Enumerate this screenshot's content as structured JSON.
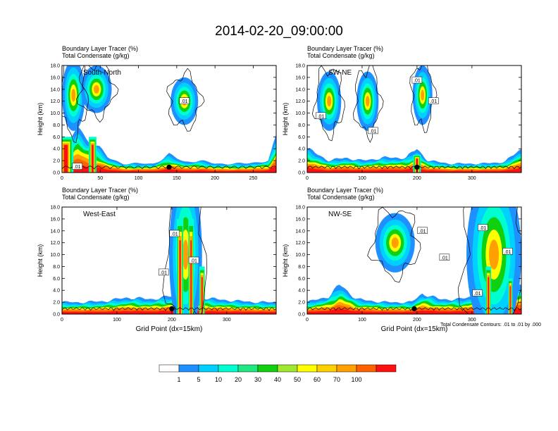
{
  "title": "2014-02-20_09:00:00",
  "colors": [
    "#ffffff",
    "#1e90ff",
    "#00d0ff",
    "#00ffd0",
    "#20e880",
    "#10d010",
    "#a0e830",
    "#ffff00",
    "#ffd000",
    "#ffa000",
    "#ff6000",
    "#ff1010"
  ],
  "colorbar": {
    "labels": [
      "1",
      "5",
      "10",
      "20",
      "30",
      "40",
      "50",
      "60",
      "70",
      "100"
    ]
  },
  "contour_note": "Total Condensate Contours: .01 to .01 by .000",
  "chart_data": [
    {
      "type": "contour",
      "panel_label": "South-North",
      "line1": "Boundary Layer Tracer    (%)",
      "line2": "Total Condensate   (g/kg)",
      "ylabel": "Height (km)",
      "xlabel": "",
      "yticks": [
        "0.0",
        "2.0",
        "4.0",
        "6.0",
        "8.0",
        "10.0",
        "12.0",
        "14.0",
        "16.0",
        "18.0"
      ],
      "ylim": [
        0,
        18
      ],
      "xlim": [
        0,
        280
      ],
      "xticks": [
        0,
        50,
        100,
        150,
        200,
        250
      ],
      "xtick_labels": [
        "0",
        "50",
        "100",
        "150",
        "200",
        "250"
      ],
      "storm_x": 140,
      "contour_labels": [
        ".01",
        ".01"
      ],
      "contour_label_pos": [
        [
          20,
          1.0
        ],
        [
          160,
          12.0
        ]
      ],
      "pbl_top": [
        [
          0,
          3
        ],
        [
          10,
          5
        ],
        [
          20,
          8
        ],
        [
          30,
          6
        ],
        [
          40,
          5
        ],
        [
          50,
          4
        ],
        [
          60,
          2.5
        ],
        [
          80,
          1.5
        ],
        [
          120,
          1.5
        ],
        [
          140,
          3
        ],
        [
          160,
          1.8
        ],
        [
          180,
          2
        ],
        [
          200,
          1.5
        ],
        [
          240,
          1.5
        ],
        [
          270,
          2
        ],
        [
          280,
          6
        ]
      ],
      "clouds": [
        [
          15,
          13,
          15,
          6
        ],
        [
          45,
          14,
          20,
          4
        ],
        [
          160,
          12,
          18,
          4
        ]
      ],
      "hot_columns": [
        [
          5,
          6,
          20
        ],
        [
          40,
          6,
          10
        ]
      ]
    },
    {
      "type": "contour",
      "panel_label": "SW-NE",
      "line1": "Boundary Layer Tracer    (%)",
      "line2": "Total Condensate   (g/kg)",
      "ylabel": "Height (km)",
      "xlabel": "",
      "yticks": [
        "0.0",
        "2.0",
        "4.0",
        "6.0",
        "8.0",
        "10.0",
        "12.0",
        "14.0",
        "16.0",
        "18.0"
      ],
      "ylim": [
        0,
        18
      ],
      "xlim": [
        0,
        390
      ],
      "xticks": [
        0,
        100,
        200,
        300
      ],
      "xtick_labels": [
        "0",
        "100",
        "200",
        "300"
      ],
      "storm_x": 200,
      "contour_labels": [
        ".01",
        ".01",
        ".01",
        ".01"
      ],
      "contour_label_pos": [
        [
          25,
          9.5
        ],
        [
          120,
          7.0
        ],
        [
          200,
          15.5
        ],
        [
          230,
          12.0
        ]
      ],
      "pbl_top": [
        [
          0,
          4
        ],
        [
          20,
          3
        ],
        [
          40,
          2
        ],
        [
          70,
          2.5
        ],
        [
          100,
          2
        ],
        [
          140,
          2.5
        ],
        [
          180,
          2.5
        ],
        [
          200,
          4
        ],
        [
          220,
          2
        ],
        [
          260,
          1.5
        ],
        [
          320,
          1.5
        ],
        [
          360,
          1.8
        ],
        [
          390,
          4
        ]
      ],
      "clouds": [
        [
          40,
          12,
          22,
          5
        ],
        [
          110,
          12,
          20,
          5
        ],
        [
          210,
          13,
          18,
          5
        ]
      ],
      "hot_columns": [
        [
          200,
          3,
          14
        ]
      ]
    },
    {
      "type": "contour",
      "panel_label": "West-East",
      "line1": "Boundary Layer Tracer    (%)",
      "line2": "Total Condensate   (g/kg)",
      "ylabel": "Height (km)",
      "xlabel": "Grid Point (dx=15km)",
      "yticks": [
        "0.0",
        "2.0",
        "4.0",
        "6.0",
        "8.0",
        "10.0",
        "12.0",
        "14.0",
        "16.0",
        "18.0"
      ],
      "ylim": [
        0,
        18
      ],
      "xlim": [
        0,
        390
      ],
      "xticks": [
        0,
        100,
        200,
        300
      ],
      "xtick_labels": [
        "0",
        "100",
        "200",
        "300"
      ],
      "storm_x": 200,
      "contour_labels": [
        ".01",
        ".01",
        ".01"
      ],
      "contour_label_pos": [
        [
          205,
          13.5
        ],
        [
          240,
          9.0
        ],
        [
          185,
          7.0
        ]
      ],
      "pbl_top": [
        [
          0,
          2
        ],
        [
          40,
          2
        ],
        [
          80,
          2.2
        ],
        [
          120,
          2.8
        ],
        [
          160,
          2.5
        ],
        [
          200,
          3
        ],
        [
          240,
          3
        ],
        [
          280,
          2.5
        ],
        [
          320,
          2.2
        ],
        [
          360,
          2
        ],
        [
          390,
          2
        ]
      ],
      "clouds": [
        [
          225,
          10,
          30,
          14
        ]
      ],
      "hot_columns": [
        [
          215,
          16,
          12
        ],
        [
          235,
          16,
          10
        ],
        [
          255,
          8,
          10
        ]
      ]
    },
    {
      "type": "contour",
      "panel_label": "NW-SE",
      "line1": "Boundary Layer Tracer    (%)",
      "line2": "Total Condensate   (g/kg)",
      "ylabel": "Height (km)",
      "xlabel": "Grid Point (dx=15km)",
      "yticks": [
        "0.0",
        "2.0",
        "4.0",
        "6.0",
        "8.0",
        "10.0",
        "12.0",
        "14.0",
        "16.0",
        "18.0"
      ],
      "ylim": [
        0,
        18
      ],
      "xlim": [
        0,
        390
      ],
      "xticks": [
        0,
        100,
        200,
        300
      ],
      "xtick_labels": [
        "0",
        "100",
        "200",
        "300"
      ],
      "storm_x": 195,
      "contour_labels": [
        ".01",
        ".01",
        ".01",
        ".01",
        ".01"
      ],
      "contour_label_pos": [
        [
          210,
          14.0
        ],
        [
          250,
          9.5
        ],
        [
          310,
          3.5
        ],
        [
          320,
          14.5
        ],
        [
          365,
          10.5
        ]
      ],
      "pbl_top": [
        [
          0,
          2
        ],
        [
          40,
          3
        ],
        [
          60,
          5
        ],
        [
          90,
          2.5
        ],
        [
          140,
          2
        ],
        [
          190,
          2
        ],
        [
          210,
          3.5
        ],
        [
          240,
          2.5
        ],
        [
          280,
          2.5
        ],
        [
          300,
          3
        ],
        [
          340,
          4
        ],
        [
          390,
          5
        ]
      ],
      "clouds": [
        [
          160,
          12,
          36,
          5
        ],
        [
          340,
          10,
          50,
          14
        ]
      ],
      "hot_columns": [
        [
          330,
          8,
          10
        ],
        [
          370,
          6,
          8
        ]
      ]
    }
  ]
}
